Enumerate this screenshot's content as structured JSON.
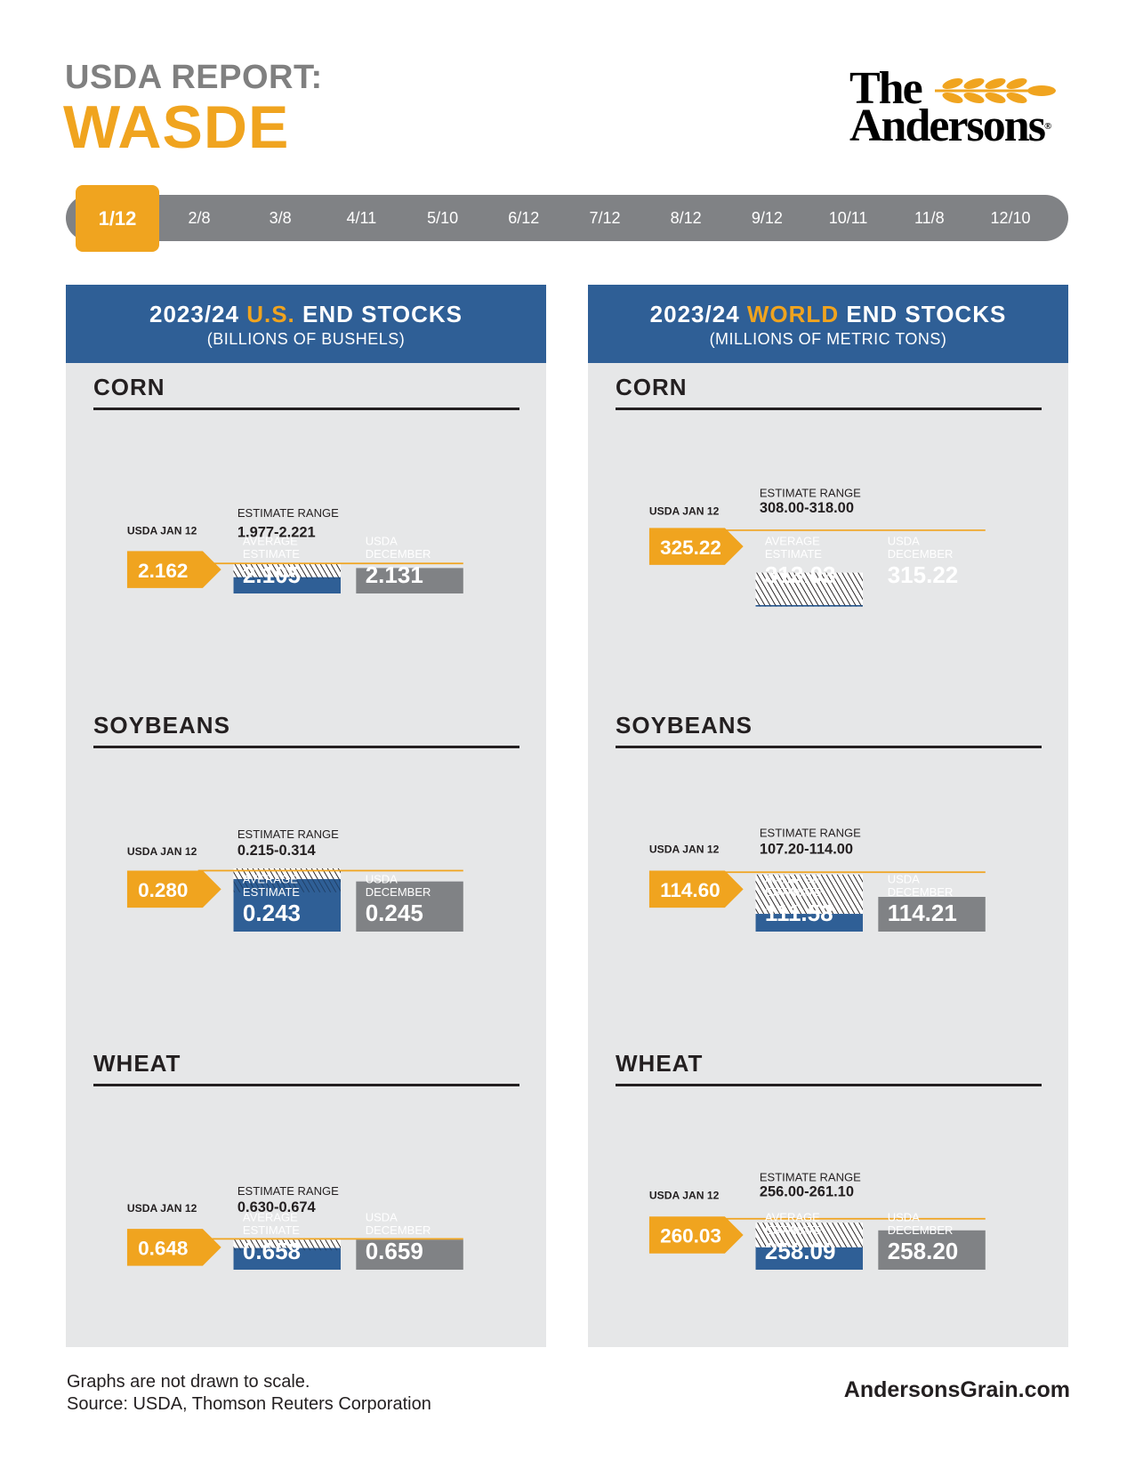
{
  "header": {
    "title_top": "USDA REPORT:",
    "title_main": "WASDE"
  },
  "logo": {
    "line1": "The",
    "line2": "Andersons",
    "reg": "®"
  },
  "timeline": {
    "active": "1/12",
    "dates": [
      "2/8",
      "3/8",
      "4/11",
      "5/10",
      "6/12",
      "7/12",
      "8/12",
      "9/12",
      "10/11",
      "11/8",
      "12/10"
    ]
  },
  "colors": {
    "orange": "#f0a41f",
    "blue": "#2f5f96",
    "gray": "#808285",
    "panel": "#e6e7e8"
  },
  "panels": [
    {
      "title_pre": "2023/24 ",
      "title_accent": "U.S.",
      "title_post": " END STOCKS",
      "subtitle": "(BILLIONS OF BUSHELS)"
    },
    {
      "title_pre": "2023/24 ",
      "title_accent": "WORLD",
      "title_post": " END STOCKS",
      "subtitle": "(MILLIONS OF METRIC TONS)"
    }
  ],
  "chart_data": [
    {
      "panel": 0,
      "type": "bar",
      "title": "CORN",
      "usda_label": "USDA JAN 12",
      "usda_jan12": "2.162",
      "range_label": "ESTIMATE RANGE",
      "estimate_range": "1.977-2.221",
      "avg_label": [
        "AVERAGE",
        "ESTIMATE"
      ],
      "average_estimate": "2.105",
      "dec_label": [
        "USDA",
        "DECEMBER"
      ],
      "usda_december": "2.131"
    },
    {
      "panel": 0,
      "type": "bar",
      "title": "SOYBEANS",
      "usda_label": "USDA JAN 12",
      "usda_jan12": "0.280",
      "range_label": "ESTIMATE RANGE",
      "estimate_range": "0.215-0.314",
      "avg_label": [
        "AVERAGE",
        "ESTIMATE"
      ],
      "average_estimate": "0.243",
      "dec_label": [
        "USDA",
        "DECEMBER"
      ],
      "usda_december": "0.245"
    },
    {
      "panel": 0,
      "type": "bar",
      "title": "WHEAT",
      "usda_label": "USDA JAN 12",
      "usda_jan12": "0.648",
      "range_label": "ESTIMATE RANGE",
      "estimate_range": "0.630-0.674",
      "avg_label": [
        "AVERAGE",
        "ESTIMATE"
      ],
      "average_estimate": "0.658",
      "dec_label": [
        "USDA",
        "DECEMBER"
      ],
      "usda_december": "0.659"
    },
    {
      "panel": 1,
      "type": "bar",
      "title": "CORN",
      "usda_label": "USDA JAN 12",
      "usda_jan12": "325.22",
      "range_label": "ESTIMATE RANGE",
      "estimate_range": "308.00-318.00",
      "avg_label": [
        "AVERAGE",
        "ESTIMATE"
      ],
      "average_estimate": "313.03",
      "dec_label": [
        "USDA",
        "DECEMBER"
      ],
      "usda_december": "315.22"
    },
    {
      "panel": 1,
      "type": "bar",
      "title": "SOYBEANS",
      "usda_label": "USDA JAN 12",
      "usda_jan12": "114.60",
      "range_label": "ESTIMATE RANGE",
      "estimate_range": "107.20-114.00",
      "avg_label": [
        "AVERAGE",
        "ESTIMATE"
      ],
      "average_estimate": "111.58",
      "dec_label": [
        "USDA",
        "DECEMBER"
      ],
      "usda_december": "114.21"
    },
    {
      "panel": 1,
      "type": "bar",
      "title": "WHEAT",
      "usda_label": "USDA JAN 12",
      "usda_jan12": "260.03",
      "range_label": "ESTIMATE RANGE",
      "estimate_range": "256.00-261.10",
      "avg_label": [
        "AVERAGE",
        "ESTIMATE"
      ],
      "average_estimate": "258.09",
      "dec_label": [
        "USDA",
        "DECEMBER"
      ],
      "usda_december": "258.20"
    }
  ],
  "footer": {
    "note": "Graphs are not drawn to scale.",
    "source": "Source: USDA, Thomson Reuters Corporation",
    "website": "AndersonsGrain.com"
  }
}
